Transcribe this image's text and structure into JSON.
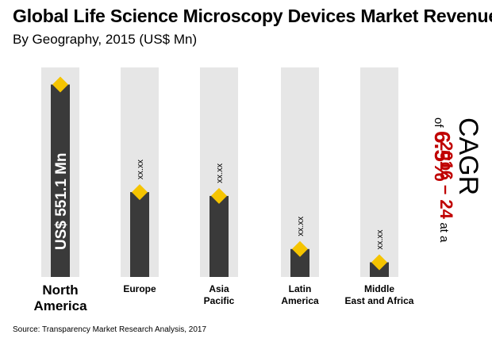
{
  "title": "Global Life Science Microscopy Devices Market Revenue",
  "subtitle": "By Geography, 2015 (US$ Mn)",
  "source": "Source: Transparency Market Research Analysis, 2017",
  "cagr": {
    "label": "CAGR",
    "period": "2016 – 24",
    "at_a": "at a",
    "of": "of",
    "rate": "6.5%"
  },
  "colors": {
    "bar": "#3a3a3a",
    "track": "#e6e6e6",
    "marker": "#f5c400",
    "cagr_red": "#c00000"
  },
  "chart_data": {
    "type": "bar",
    "categories": [
      "North\nAmerica",
      "Europe",
      "Asia\nPacific",
      "Latin\nAmerica",
      "Middle\nEast and Africa"
    ],
    "values": [
      551.1,
      243,
      232,
      80,
      42
    ],
    "data_labels": [
      "US$ 551.1 Mn",
      "xx.xx",
      "xx.xx",
      "xx.xx",
      "xx.xx"
    ],
    "ylim": [
      0,
      600
    ]
  }
}
